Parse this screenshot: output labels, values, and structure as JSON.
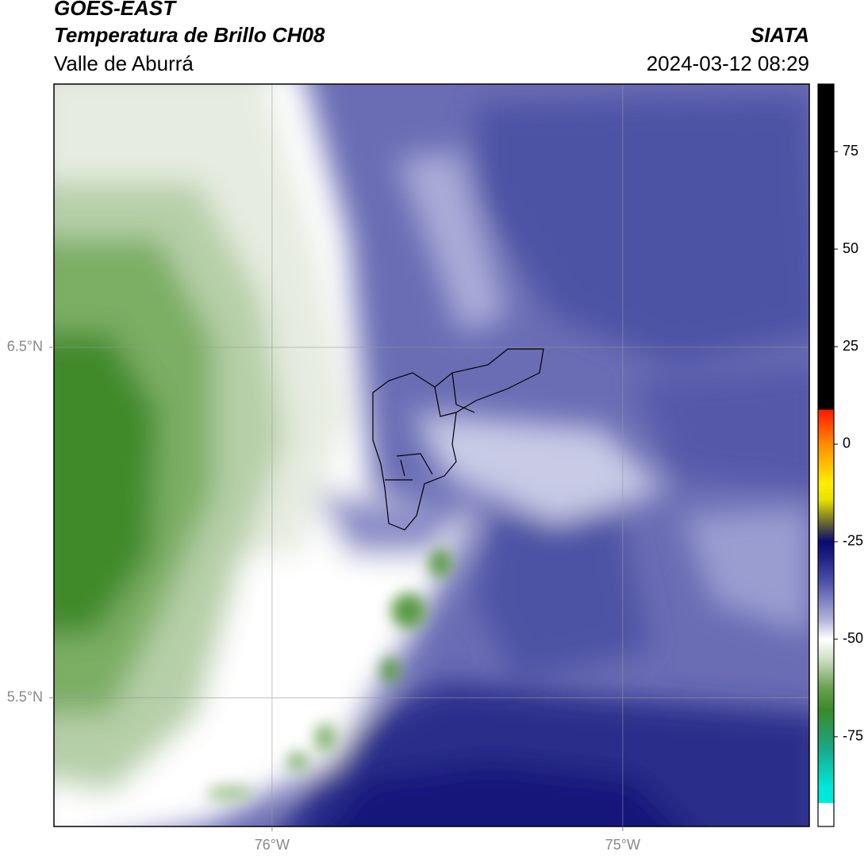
{
  "header": {
    "title": "GOES-EAST",
    "subtitle": "Temperatura de Brillo CH08",
    "region": "Valle de Aburrá",
    "source": "SIATA",
    "timestamp": "2024-03-12 08:29"
  },
  "map": {
    "lon_lim": [
      -76.622,
      -74.468
    ],
    "lat_lim": [
      5.133,
      7.251
    ],
    "lon_ticks": [
      {
        "value": -76,
        "label": "76°W"
      },
      {
        "value": -75,
        "label": "75°W"
      }
    ],
    "lat_ticks": [
      {
        "value": 6.5,
        "label": "6.5°N"
      },
      {
        "value": 5.5,
        "label": "5.5°N"
      }
    ]
  },
  "colorbar": {
    "lim": [
      -98,
      92.3
    ],
    "ticks": [
      75,
      50,
      25,
      0,
      -25,
      -50,
      -75
    ]
  }
}
